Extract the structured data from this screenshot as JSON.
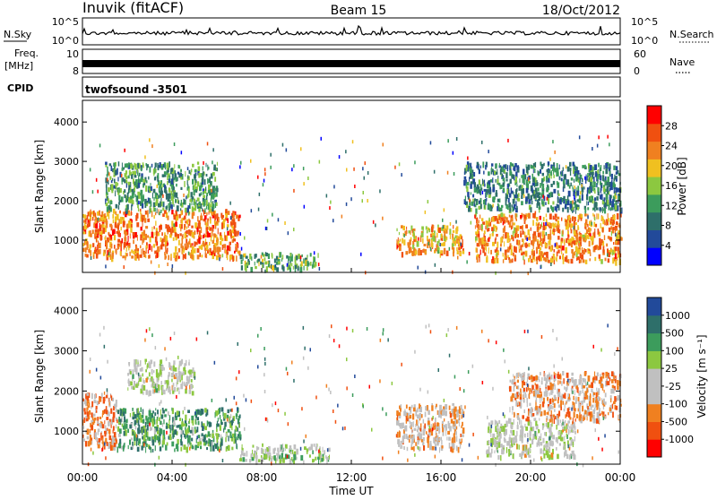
{
  "header": {
    "station": "Inuvik (fitACF)",
    "beam": "Beam 15",
    "date": "18/Oct/2012"
  },
  "top_panels": {
    "nsky_label": "N.Sky",
    "nsky_ticks": [
      "10^5",
      "10^0"
    ],
    "nsearch_label": "N.Search",
    "nsearch_ticks": [
      "10^5",
      "10^0"
    ],
    "freq_label": "Freq.",
    "freq_unit": "[MHz]",
    "freq_ticks": [
      "10",
      "8"
    ],
    "nave_label": "Nave",
    "nave_ticks": [
      "60",
      "0"
    ],
    "cpid_label": "CPID",
    "cpid_value": "twofsound  -3501"
  },
  "colors": {
    "power": [
      "#0000ff",
      "#224a9a",
      "#2e6f6a",
      "#3c9c5c",
      "#8cc840",
      "#f0c020",
      "#f08020",
      "#f05010",
      "#ff0000"
    ],
    "velocity": [
      "#ff0000",
      "#f05010",
      "#f08020",
      "#c0c0c0",
      "#c0c0c0",
      "#8cc840",
      "#3c9c5c",
      "#2e6f6a",
      "#224a9a"
    ]
  },
  "chart_data": [
    {
      "type": "heatmap",
      "name": "power",
      "ylabel": "Slant Range [km]",
      "ylim": [
        180,
        4550
      ],
      "y_ticks": [
        1000,
        2000,
        3000,
        4000
      ],
      "colorbar_label": "Power [dB]",
      "colorbar_ticks": [
        "4",
        "8",
        "12",
        "16",
        "20",
        "24",
        "28"
      ],
      "colorbar_range": [
        0,
        32
      ],
      "echo_bands": [
        {
          "t0": 0.0,
          "t1": 7.0,
          "r0": 600,
          "r1": 1800,
          "value": 24
        },
        {
          "t0": 7.0,
          "t1": 10.5,
          "r0": 300,
          "r1": 700,
          "value": 14
        },
        {
          "t0": 14.0,
          "t1": 17.0,
          "r0": 700,
          "r1": 1400,
          "value": 22
        },
        {
          "t0": 17.5,
          "t1": 24.0,
          "r0": 500,
          "r1": 1700,
          "value": 23
        },
        {
          "t0": 1.0,
          "t1": 6.0,
          "r0": 1800,
          "r1": 3000,
          "value": 12
        },
        {
          "t0": 17.0,
          "t1": 24.0,
          "r0": 1800,
          "r1": 3000,
          "value": 10
        }
      ]
    },
    {
      "type": "heatmap",
      "name": "velocity",
      "xlabel": "Time UT",
      "x_ticks": [
        "00:00",
        "04:00",
        "08:00",
        "12:00",
        "16:00",
        "20:00",
        "00:00"
      ],
      "ylabel": "Slant Range [km]",
      "ylim": [
        180,
        4550
      ],
      "y_ticks": [
        1000,
        2000,
        3000,
        4000
      ],
      "colorbar_label": "Velocity [m s⁻¹]",
      "colorbar_ticks": [
        "1000",
        "500",
        "100",
        "25",
        "-25",
        "-100",
        "-500",
        "-1000"
      ],
      "echo_bands": [
        {
          "t0": 0.0,
          "t1": 1.5,
          "r0": 600,
          "r1": 2000,
          "value": -500
        },
        {
          "t0": 1.5,
          "t1": 7.0,
          "r0": 600,
          "r1": 1600,
          "value": 500
        },
        {
          "t0": 7.0,
          "t1": 11.0,
          "r0": 300,
          "r1": 700,
          "value": 100
        },
        {
          "t0": 2.0,
          "t1": 5.0,
          "r0": 2000,
          "r1": 2800,
          "value": 0
        },
        {
          "t0": 14.0,
          "t1": 17.0,
          "r0": 600,
          "r1": 1700,
          "value": -300
        },
        {
          "t0": 18.0,
          "t1": 22.0,
          "r0": 400,
          "r1": 1300,
          "value": 0
        },
        {
          "t0": 19.0,
          "t1": 24.0,
          "r0": 1300,
          "r1": 2500,
          "value": -400
        }
      ]
    }
  ]
}
